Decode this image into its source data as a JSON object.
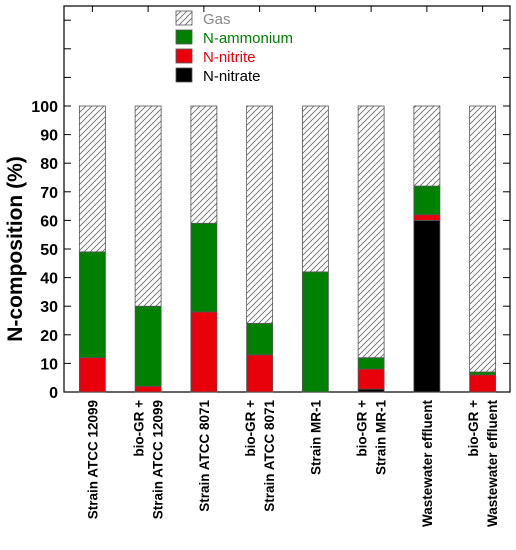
{
  "chart_data": {
    "type": "bar",
    "stacked": true,
    "ylabel": "N-composition (%)",
    "xlabel": "",
    "ylim": [
      0,
      100
    ],
    "yticks": [
      0,
      10,
      20,
      30,
      40,
      50,
      60,
      70,
      80,
      90,
      100
    ],
    "grid": false,
    "legend_position": "top-center",
    "categories": [
      [
        "Strain ATCC 12099"
      ],
      [
        "bio-GR +",
        "Strain ATCC 12099"
      ],
      [
        "Strain ATCC 8071"
      ],
      [
        "bio-GR +",
        "Strain ATCC 8071"
      ],
      [
        "Strain MR-1"
      ],
      [
        "bio-GR +",
        "Strain MR-1"
      ],
      [
        "Wastewater effluent"
      ],
      [
        "bio-GR +",
        "Wastewater effluent"
      ]
    ],
    "series": [
      {
        "name": "N-nitrate",
        "color": "#000000",
        "pattern": "solid",
        "values": [
          0,
          0,
          0,
          0,
          0,
          1,
          60,
          0
        ]
      },
      {
        "name": "N-nitrite",
        "color": "#e8000b",
        "pattern": "solid",
        "values": [
          12,
          2,
          28,
          13,
          0,
          7,
          2,
          6
        ]
      },
      {
        "name": "N-ammonium",
        "color": "#008000",
        "pattern": "solid",
        "values": [
          37,
          28,
          31,
          11,
          42,
          4,
          10,
          1
        ]
      },
      {
        "name": "Gas",
        "color": "#ffffff",
        "pattern": "hatch",
        "values": [
          51,
          70,
          41,
          76,
          58,
          88,
          28,
          93
        ]
      }
    ],
    "legend_order": [
      "Gas",
      "N-ammonium",
      "N-nitrite",
      "N-nitrate"
    ],
    "legend_text_colors": {
      "Gas": "#888888",
      "N-ammonium": "#008000",
      "N-nitrite": "#e8000b",
      "N-nitrate": "#000000"
    }
  }
}
